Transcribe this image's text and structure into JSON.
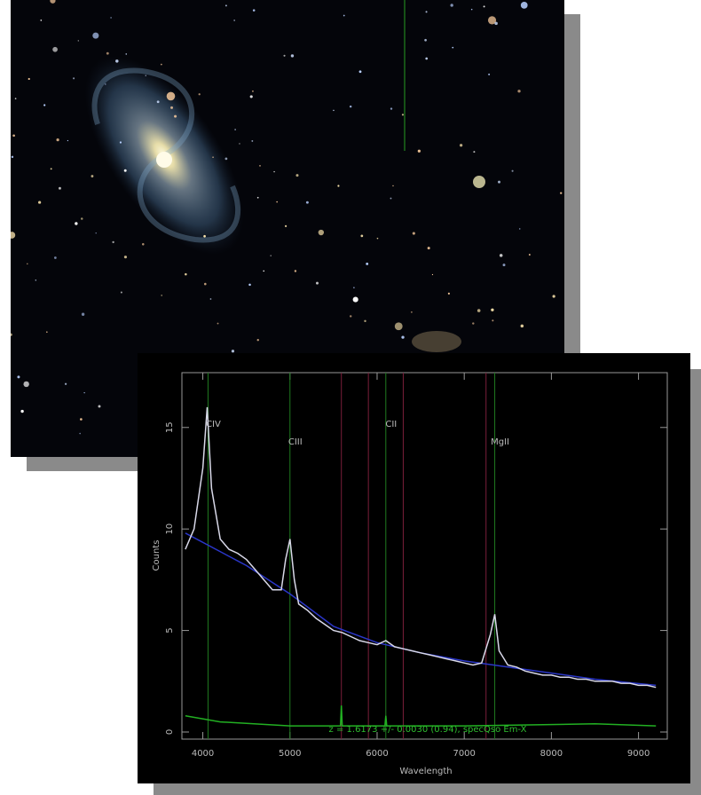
{
  "chart_data": {
    "type": "line",
    "x_label": "Wavelength",
    "y_label": "Counts",
    "annotation": "z = 1.6173 +/- 0.0030 (0.94), specQso Em-X",
    "xlim": [
      3760,
      9330
    ],
    "ylim": [
      -0.35,
      17.7
    ],
    "xticks": [
      4000,
      5000,
      6000,
      7000,
      8000,
      9000
    ],
    "yticks": [
      0,
      5,
      10,
      15
    ],
    "lines": [
      {
        "label": "CIV",
        "x": 4060,
        "color": "#1f7a1f"
      },
      {
        "label": "CIII",
        "x": 5000,
        "color": "#1f7a1f"
      },
      {
        "label": "CII",
        "x": 6100,
        "color": "#1f7a1f"
      },
      {
        "label": "MgII",
        "x": 7350,
        "color": "#1f7a1f"
      }
    ],
    "sky_lines": {
      "color": "#7a1f3a",
      "x": [
        5590,
        5900,
        6300,
        7250
      ]
    },
    "series": [
      {
        "color": "#2a36c8",
        "x": [
          3800,
          4500,
          5000,
          5500,
          6000,
          6500,
          7000,
          7500,
          8000,
          8500,
          9200
        ],
        "values": [
          9.8,
          8.2,
          6.8,
          5.2,
          4.4,
          3.9,
          3.5,
          3.2,
          2.9,
          2.6,
          2.3
        ]
      },
      {
        "color": "#d8d8e8",
        "x": [
          3800,
          3900,
          4000,
          4050,
          4100,
          4200,
          4300,
          4400,
          4500,
          4600,
          4700,
          4800,
          4900,
          4950,
          5000,
          5050,
          5100,
          5200,
          5300,
          5400,
          5500,
          5600,
          5700,
          5800,
          5900,
          6000,
          6100,
          6200,
          6300,
          6400,
          6500,
          6600,
          6700,
          6800,
          6900,
          7000,
          7100,
          7200,
          7300,
          7350,
          7400,
          7500,
          7600,
          7700,
          7800,
          7900,
          8000,
          8100,
          8200,
          8300,
          8400,
          8500,
          8600,
          8700,
          8800,
          8900,
          9000,
          9100,
          9200
        ],
        "values": [
          9,
          10,
          13,
          16,
          12,
          9.5,
          9,
          8.8,
          8.5,
          8,
          7.5,
          7,
          7,
          8.5,
          9.5,
          7.5,
          6.3,
          6,
          5.6,
          5.3,
          5,
          4.9,
          4.7,
          4.5,
          4.4,
          4.3,
          4.5,
          4.2,
          4.1,
          4,
          3.9,
          3.8,
          3.7,
          3.6,
          3.5,
          3.4,
          3.3,
          3.4,
          4.8,
          5.8,
          4,
          3.3,
          3.2,
          3,
          2.9,
          2.8,
          2.8,
          2.7,
          2.7,
          2.6,
          2.6,
          2.5,
          2.5,
          2.5,
          2.4,
          2.4,
          2.3,
          2.3,
          2.2
        ]
      },
      {
        "color": "#22b022",
        "x": [
          3800,
          4200,
          5000,
          5580,
          5590,
          5600,
          6000,
          6090,
          6100,
          6110,
          7000,
          8500,
          9200
        ],
        "values": [
          0.8,
          0.5,
          0.3,
          0.3,
          1.3,
          0.3,
          0.3,
          0.3,
          0.8,
          0.3,
          0.3,
          0.4,
          0.3
        ]
      }
    ]
  }
}
